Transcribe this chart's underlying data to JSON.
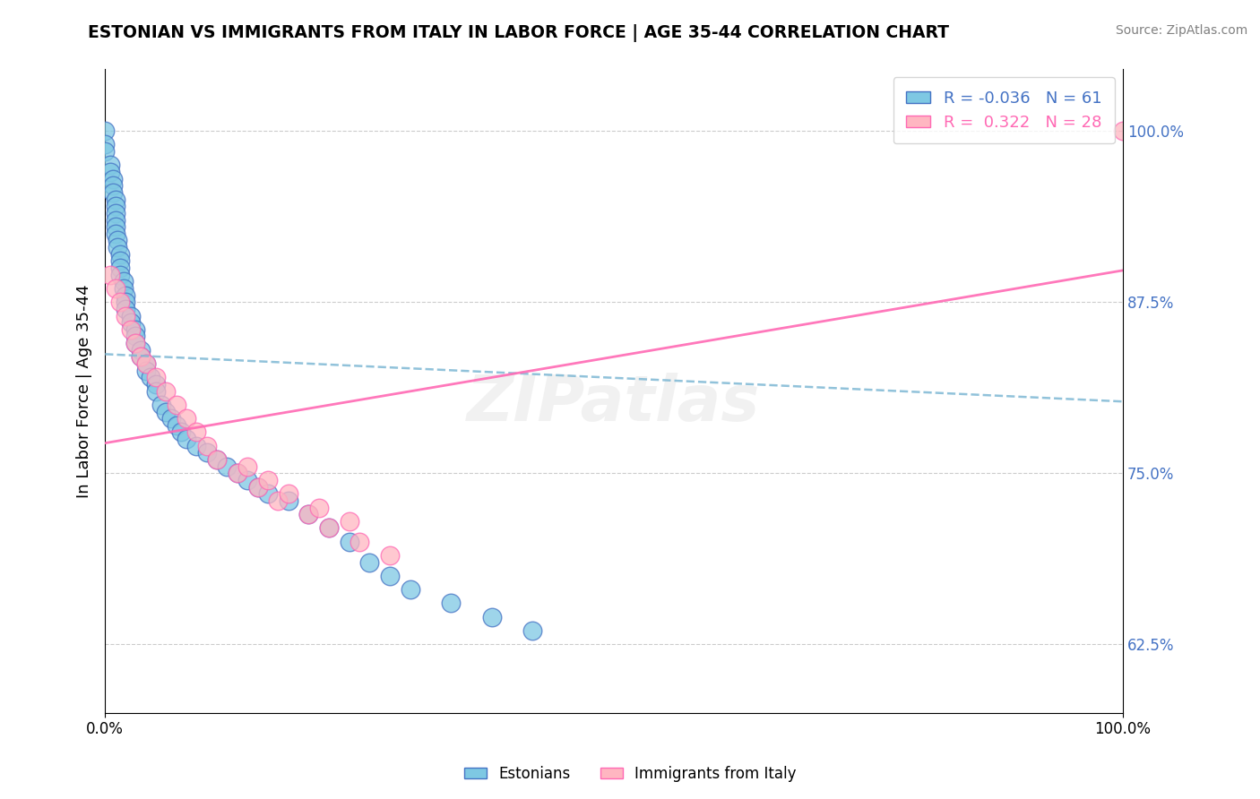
{
  "title": "ESTONIAN VS IMMIGRANTS FROM ITALY IN LABOR FORCE | AGE 35-44 CORRELATION CHART",
  "source": "Source: ZipAtlas.com",
  "ylabel": "In Labor Force | Age 35-44",
  "legend_label1": "Estonians",
  "legend_label2": "Immigrants from Italy",
  "r1": "-0.036",
  "n1": "61",
  "r2": "0.322",
  "n2": "28",
  "color_blue": "#7EC8E3",
  "color_pink": "#FFB6C1",
  "color_blue_dark": "#4472C4",
  "color_pink_dark": "#FF69B4",
  "watermark": "ZIPatlas",
  "blue_dots_x": [
    0.0,
    0.0,
    0.0,
    0.005,
    0.005,
    0.008,
    0.008,
    0.008,
    0.01,
    0.01,
    0.01,
    0.01,
    0.01,
    0.01,
    0.012,
    0.012,
    0.015,
    0.015,
    0.015,
    0.015,
    0.018,
    0.018,
    0.02,
    0.02,
    0.02,
    0.025,
    0.025,
    0.03,
    0.03,
    0.03,
    0.035,
    0.035,
    0.04,
    0.04,
    0.045,
    0.05,
    0.05,
    0.055,
    0.06,
    0.065,
    0.07,
    0.075,
    0.08,
    0.09,
    0.1,
    0.11,
    0.12,
    0.13,
    0.14,
    0.15,
    0.16,
    0.18,
    0.2,
    0.22,
    0.24,
    0.26,
    0.28,
    0.3,
    0.34,
    0.38,
    0.42
  ],
  "blue_dots_y": [
    1.0,
    0.99,
    0.985,
    0.975,
    0.97,
    0.965,
    0.96,
    0.955,
    0.95,
    0.945,
    0.94,
    0.935,
    0.93,
    0.925,
    0.92,
    0.915,
    0.91,
    0.905,
    0.9,
    0.895,
    0.89,
    0.885,
    0.88,
    0.875,
    0.87,
    0.865,
    0.86,
    0.855,
    0.85,
    0.845,
    0.84,
    0.835,
    0.83,
    0.825,
    0.82,
    0.815,
    0.81,
    0.8,
    0.795,
    0.79,
    0.785,
    0.78,
    0.775,
    0.77,
    0.765,
    0.76,
    0.755,
    0.75,
    0.745,
    0.74,
    0.735,
    0.73,
    0.72,
    0.71,
    0.7,
    0.685,
    0.675,
    0.665,
    0.655,
    0.645,
    0.635
  ],
  "pink_dots_x": [
    0.005,
    0.01,
    0.015,
    0.02,
    0.025,
    0.03,
    0.035,
    0.04,
    0.05,
    0.06,
    0.07,
    0.08,
    0.09,
    0.1,
    0.11,
    0.13,
    0.15,
    0.17,
    0.2,
    0.22,
    0.25,
    0.28,
    0.14,
    0.16,
    0.18,
    0.21,
    0.24,
    1.0
  ],
  "pink_dots_y": [
    0.895,
    0.885,
    0.875,
    0.865,
    0.855,
    0.845,
    0.835,
    0.83,
    0.82,
    0.81,
    0.8,
    0.79,
    0.78,
    0.77,
    0.76,
    0.75,
    0.74,
    0.73,
    0.72,
    0.71,
    0.7,
    0.69,
    0.755,
    0.745,
    0.735,
    0.725,
    0.715,
    1.0
  ],
  "xlim": [
    0.0,
    1.0
  ],
  "ylim": [
    0.575,
    1.045
  ],
  "yticks_right": [
    0.625,
    0.75,
    0.875,
    1.0
  ]
}
